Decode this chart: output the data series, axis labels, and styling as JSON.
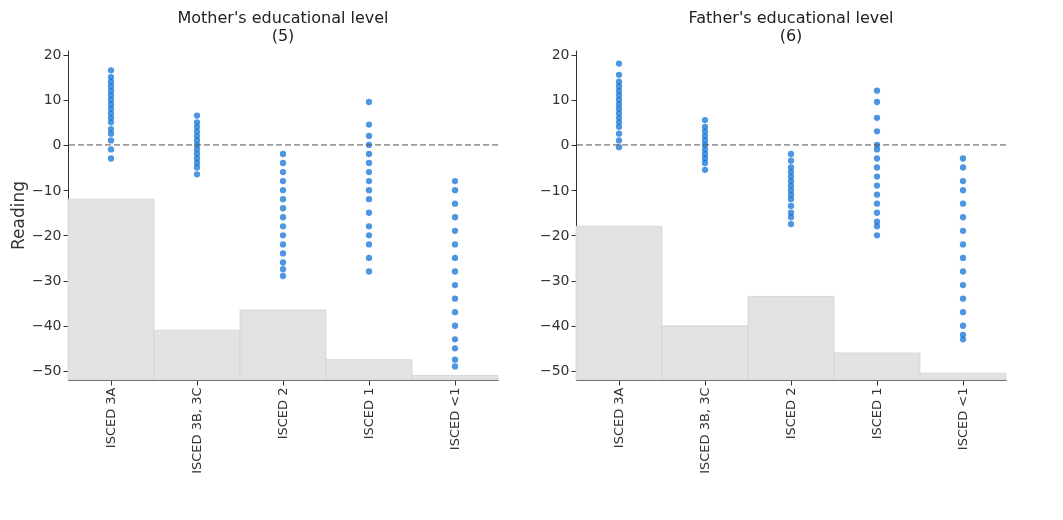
{
  "chart_data": [
    {
      "type": "scatter",
      "title": "Mother's educational level\n(5)",
      "ylabel": "Reading",
      "categories": [
        "ISCED 3A",
        "ISCED 3B, 3C",
        "ISCED 2",
        "ISCED 1",
        "ISCED <1"
      ],
      "ylim": [
        -52,
        21
      ],
      "yticks": [
        -50,
        -40,
        -30,
        -20,
        -10,
        0,
        10,
        20
      ],
      "grid": false,
      "marker": "circle",
      "ref_lines": [
        {
          "axis": "y",
          "value": 0,
          "color": "#555555",
          "line_style": "dashed"
        }
      ],
      "series": [
        {
          "type": "bar",
          "color": "#e2e2e2",
          "base": [
            -52,
            -52,
            -52,
            -52,
            -52
          ],
          "values": [
            40,
            11,
            15.5,
            4.5,
            1
          ]
        },
        {
          "color": "#1473d8",
          "x": [
            "ISCED 3A",
            "ISCED 3A",
            "ISCED 3A",
            "ISCED 3A",
            "ISCED 3A",
            "ISCED 3A",
            "ISCED 3A",
            "ISCED 3A",
            "ISCED 3A",
            "ISCED 3A",
            "ISCED 3A",
            "ISCED 3A",
            "ISCED 3A",
            "ISCED 3A",
            "ISCED 3A",
            "ISCED 3A",
            "ISCED 3A",
            "ISCED 3B, 3C",
            "ISCED 3B, 3C",
            "ISCED 3B, 3C",
            "ISCED 3B, 3C",
            "ISCED 3B, 3C",
            "ISCED 3B, 3C",
            "ISCED 3B, 3C",
            "ISCED 3B, 3C",
            "ISCED 3B, 3C",
            "ISCED 3B, 3C",
            "ISCED 3B, 3C",
            "ISCED 3B, 3C",
            "ISCED 3B, 3C",
            "ISCED 2",
            "ISCED 2",
            "ISCED 2",
            "ISCED 2",
            "ISCED 2",
            "ISCED 2",
            "ISCED 2",
            "ISCED 2",
            "ISCED 2",
            "ISCED 2",
            "ISCED 2",
            "ISCED 2",
            "ISCED 2",
            "ISCED 2",
            "ISCED 2",
            "ISCED 1",
            "ISCED 1",
            "ISCED 1",
            "ISCED 1",
            "ISCED 1",
            "ISCED 1",
            "ISCED 1",
            "ISCED 1",
            "ISCED 1",
            "ISCED 1",
            "ISCED 1",
            "ISCED 1",
            "ISCED 1",
            "ISCED 1",
            "ISCED 1",
            "ISCED 1",
            "ISCED <1",
            "ISCED <1",
            "ISCED <1",
            "ISCED <1",
            "ISCED <1",
            "ISCED <1",
            "ISCED <1",
            "ISCED <1",
            "ISCED <1",
            "ISCED <1",
            "ISCED <1",
            "ISCED <1",
            "ISCED <1",
            "ISCED <1",
            "ISCED <1",
            "ISCED <1"
          ],
          "values": [
            -3,
            -1,
            1,
            2.5,
            3.5,
            5,
            6,
            7,
            8,
            9,
            10,
            11,
            12,
            13,
            14,
            15,
            16.5,
            -6.5,
            -5,
            -4,
            -3,
            -2,
            -1,
            0,
            1,
            2,
            3,
            4,
            5,
            6.5,
            -29,
            -27.5,
            -26,
            -24,
            -22,
            -20,
            -18,
            -16,
            -14,
            -12,
            -10,
            -8,
            -6,
            -4,
            -2,
            -28,
            -25,
            -22,
            -20,
            -18,
            -15,
            -12,
            -10,
            -8,
            -6,
            -4,
            -2,
            0,
            2,
            4.5,
            9.5,
            -49,
            -47.5,
            -45,
            -43,
            -40,
            -37,
            -34,
            -31,
            -28,
            -25,
            -22,
            -19,
            -16,
            -13,
            -10,
            -8
          ]
        }
      ]
    },
    {
      "type": "scatter",
      "title": "Father's educational level\n(6)",
      "categories": [
        "ISCED 3A",
        "ISCED 3B, 3C",
        "ISCED 2",
        "ISCED 1",
        "ISCED <1"
      ],
      "ylim": [
        -52,
        21
      ],
      "yticks": [
        -50,
        -40,
        -30,
        -20,
        -10,
        0,
        10,
        20
      ],
      "grid": false,
      "marker": "circle",
      "ref_lines": [
        {
          "axis": "y",
          "value": 0,
          "color": "#555555",
          "line_style": "dashed"
        }
      ],
      "series": [
        {
          "type": "bar",
          "color": "#e2e2e2",
          "base": [
            -52,
            -52,
            -52,
            -52,
            -52
          ],
          "values": [
            34,
            12,
            18.5,
            6,
            1.5
          ]
        },
        {
          "color": "#1473d8",
          "x": [
            "ISCED 3A",
            "ISCED 3A",
            "ISCED 3A",
            "ISCED 3A",
            "ISCED 3A",
            "ISCED 3A",
            "ISCED 3A",
            "ISCED 3A",
            "ISCED 3A",
            "ISCED 3A",
            "ISCED 3A",
            "ISCED 3A",
            "ISCED 3A",
            "ISCED 3A",
            "ISCED 3A",
            "ISCED 3A",
            "ISCED 3B, 3C",
            "ISCED 3B, 3C",
            "ISCED 3B, 3C",
            "ISCED 3B, 3C",
            "ISCED 3B, 3C",
            "ISCED 3B, 3C",
            "ISCED 3B, 3C",
            "ISCED 3B, 3C",
            "ISCED 3B, 3C",
            "ISCED 3B, 3C",
            "ISCED 3B, 3C",
            "ISCED 2",
            "ISCED 2",
            "ISCED 2",
            "ISCED 2",
            "ISCED 2",
            "ISCED 2",
            "ISCED 2",
            "ISCED 2",
            "ISCED 2",
            "ISCED 2",
            "ISCED 2",
            "ISCED 2",
            "ISCED 2",
            "ISCED 2",
            "ISCED 1",
            "ISCED 1",
            "ISCED 1",
            "ISCED 1",
            "ISCED 1",
            "ISCED 1",
            "ISCED 1",
            "ISCED 1",
            "ISCED 1",
            "ISCED 1",
            "ISCED 1",
            "ISCED 1",
            "ISCED 1",
            "ISCED 1",
            "ISCED 1",
            "ISCED 1",
            "ISCED <1",
            "ISCED <1",
            "ISCED <1",
            "ISCED <1",
            "ISCED <1",
            "ISCED <1",
            "ISCED <1",
            "ISCED <1",
            "ISCED <1",
            "ISCED <1",
            "ISCED <1",
            "ISCED <1",
            "ISCED <1",
            "ISCED <1",
            "ISCED <1",
            "ISCED <1"
          ],
          "values": [
            -0.5,
            1,
            2.5,
            4,
            5,
            6,
            7,
            8,
            9,
            10,
            11,
            12,
            13,
            14,
            15.5,
            18,
            -5.5,
            -4,
            -3,
            -2,
            -1,
            0,
            1,
            2,
            3,
            4,
            5.5,
            -17.5,
            -16,
            -15,
            -13.5,
            -12,
            -11,
            -10,
            -9,
            -8,
            -7,
            -6,
            -5,
            -3.5,
            -2,
            -20,
            -18,
            -17,
            -15,
            -13,
            -11,
            -9,
            -7,
            -5,
            -3,
            -1,
            0,
            3,
            6,
            9.5,
            12,
            -43,
            -42,
            -40,
            -37,
            -34,
            -31,
            -28,
            -25,
            -22,
            -19,
            -16,
            -13,
            -10,
            -8,
            -5,
            -3
          ]
        }
      ]
    }
  ]
}
